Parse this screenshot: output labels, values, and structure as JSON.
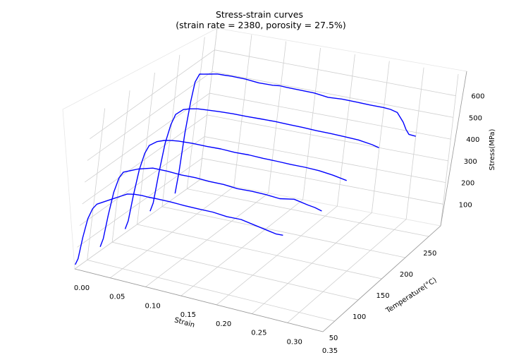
{
  "chart_data": {
    "type": "line-3d",
    "title_lines": [
      "Stress-strain curves",
      "(strain rate = 2380, porosity = 27.5%)"
    ],
    "xlabel": "Strain",
    "ylabel": "Temperature(°C)",
    "zlabel": "Stress(MPa)",
    "xlim": [
      0.0,
      0.35
    ],
    "ylim": [
      25,
      275
    ],
    "zlim": [
      0,
      700
    ],
    "xticks": [
      "0.00",
      "0.05",
      "0.10",
      "0.15",
      "0.20",
      "0.25",
      "0.30",
      "0.35"
    ],
    "yticks": [
      "50",
      "100",
      "150",
      "200",
      "250"
    ],
    "zticks": [
      "100",
      "200",
      "300",
      "400",
      "500",
      "600"
    ],
    "grid": true,
    "color": "#0000ff",
    "series": [
      {
        "temperature": 25,
        "strain": [
          0.0,
          0.003,
          0.006,
          0.01,
          0.015,
          0.02,
          0.03,
          0.04,
          0.05,
          0.06,
          0.07,
          0.08,
          0.09,
          0.1,
          0.12,
          0.14,
          0.16,
          0.18,
          0.2,
          0.22,
          0.24,
          0.26,
          0.27,
          0.28
        ],
        "stress": [
          20,
          50,
          150,
          240,
          290,
          315,
          335,
          355,
          375,
          395,
          402,
          405,
          405,
          407,
          409,
          408,
          409,
          411,
          407,
          410,
          400,
          390,
          385,
          387
        ]
      },
      {
        "temperature": 75,
        "strain": [
          0.0,
          0.003,
          0.006,
          0.01,
          0.015,
          0.02,
          0.03,
          0.04,
          0.05,
          0.06,
          0.08,
          0.1,
          0.12,
          0.14,
          0.16,
          0.18,
          0.2,
          0.22,
          0.24,
          0.26,
          0.28,
          0.29,
          0.3
        ],
        "stress": [
          20,
          60,
          170,
          280,
          350,
          380,
          395,
          410,
          420,
          430,
          432,
          430,
          433,
          431,
          433,
          429,
          433,
          433,
          430,
          443,
          432,
          428,
          420
        ]
      },
      {
        "temperature": 125,
        "strain": [
          0.0,
          0.003,
          0.006,
          0.01,
          0.015,
          0.02,
          0.03,
          0.04,
          0.05,
          0.06,
          0.08,
          0.1,
          0.12,
          0.14,
          0.16,
          0.18,
          0.2,
          0.22,
          0.24,
          0.26,
          0.28,
          0.3
        ],
        "stress": [
          20,
          60,
          180,
          300,
          380,
          420,
          445,
          458,
          465,
          470,
          474,
          475,
          478,
          477,
          480,
          479,
          480,
          480,
          482,
          481,
          475,
          465
        ]
      },
      {
        "temperature": 175,
        "strain": [
          0.0,
          0.003,
          0.006,
          0.01,
          0.015,
          0.02,
          0.03,
          0.04,
          0.05,
          0.06,
          0.08,
          0.1,
          0.12,
          0.14,
          0.16,
          0.18,
          0.2,
          0.22,
          0.24,
          0.26,
          0.28,
          0.3,
          0.31
        ],
        "stress": [
          20,
          60,
          200,
          340,
          430,
          480,
          510,
          520,
          527,
          530,
          535,
          539,
          540,
          543,
          545,
          545,
          545,
          544,
          545,
          544,
          543,
          535,
          528
        ]
      },
      {
        "temperature": 225,
        "strain": [
          0.0,
          0.002,
          0.004,
          0.007,
          0.01,
          0.015,
          0.02,
          0.03,
          0.04,
          0.05,
          0.06,
          0.07,
          0.08,
          0.1,
          0.12,
          0.13,
          0.14,
          0.16,
          0.18,
          0.2,
          0.22,
          0.24,
          0.26,
          0.28,
          0.29,
          0.3,
          0.31,
          0.315,
          0.32,
          0.33
        ],
        "stress": [
          20,
          120,
          300,
          450,
          540,
          580,
          583,
          590,
          597,
          598,
          600,
          600,
          600,
          595,
          597,
          601,
          600,
          600,
          600,
          593,
          598,
          598,
          597,
          598,
          596,
          588,
          550,
          520,
          500,
          498
        ]
      }
    ]
  }
}
